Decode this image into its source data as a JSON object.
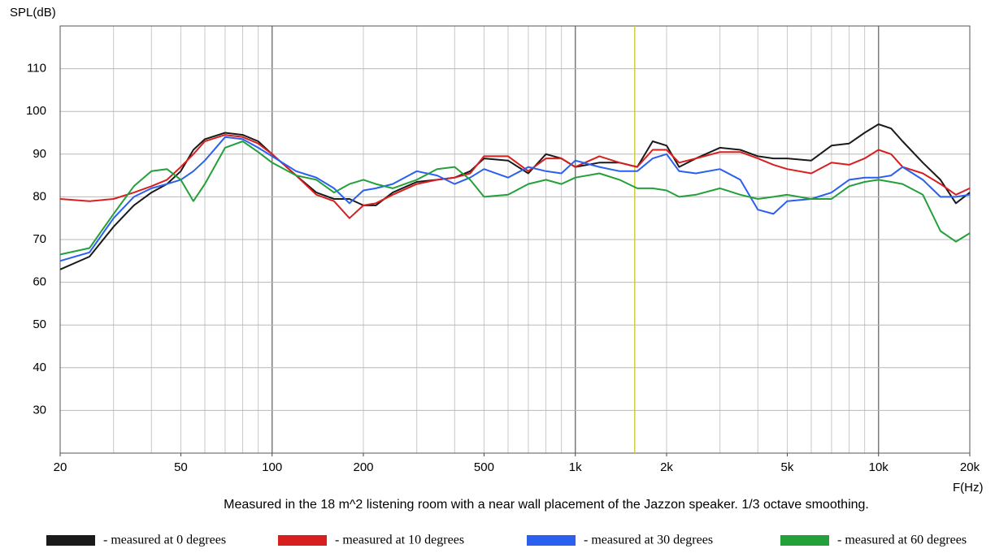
{
  "chart_data": {
    "type": "line",
    "y_label": "SPL(dB)",
    "x_label": "F(Hz)",
    "caption": "Measured in the 18 m^2 listening room with a near wall placement of the Jazzon speaker. 1/3 octave smoothing.",
    "xscale": "log",
    "grid": true,
    "xlim": [
      20,
      20000
    ],
    "ylim": [
      20,
      120
    ],
    "xticks": [
      20,
      50,
      100,
      200,
      500,
      {
        "value": 1000,
        "label": "1k"
      },
      {
        "value": 2000,
        "label": "2k"
      },
      {
        "value": 5000,
        "label": "5k"
      },
      {
        "value": 10000,
        "label": "10k"
      },
      {
        "value": 20000,
        "label": "20k"
      }
    ],
    "yticks": [
      30,
      40,
      50,
      60,
      70,
      80,
      90,
      100,
      110
    ],
    "cursor_x": 1570,
    "cursor_color": "#d4cc3a",
    "x": [
      20,
      25,
      30,
      35,
      40,
      45,
      50,
      55,
      60,
      70,
      80,
      90,
      100,
      120,
      140,
      160,
      180,
      200,
      220,
      250,
      300,
      350,
      400,
      450,
      500,
      600,
      700,
      800,
      900,
      1000,
      1200,
      1400,
      1600,
      1800,
      2000,
      2200,
      2500,
      3000,
      3500,
      4000,
      4500,
      5000,
      6000,
      7000,
      8000,
      9000,
      10000,
      11000,
      12000,
      14000,
      16000,
      18000,
      20000
    ],
    "series": [
      {
        "name": "- measured at 0 degrees",
        "color": "#1a1a1a",
        "values": [
          63,
          66,
          73,
          78,
          81,
          83,
          86,
          91,
          93.5,
          95,
          94.5,
          93,
          90,
          85,
          81,
          79.5,
          79.5,
          78,
          78,
          81,
          83.5,
          84,
          84.5,
          86,
          89,
          88.5,
          85.5,
          90,
          89,
          87,
          88,
          88,
          87,
          93,
          92,
          87,
          89,
          91.5,
          91,
          89.5,
          89,
          89,
          88.5,
          92,
          92.5,
          95,
          97,
          96,
          93,
          88,
          84,
          78.5,
          81
        ]
      },
      {
        "name": "- measured at 10 degrees",
        "color": "#d81f1f",
        "values": [
          79.5,
          79,
          79.5,
          81,
          82.5,
          84,
          87,
          90,
          93,
          94.5,
          94,
          92.5,
          90,
          85,
          80.5,
          79,
          75,
          78,
          78.5,
          80.5,
          83,
          84,
          84.5,
          85.5,
          89.5,
          89.5,
          86,
          89,
          89,
          87,
          89.5,
          88,
          87,
          91,
          91,
          88,
          89,
          90.5,
          90.5,
          89,
          87.5,
          86.5,
          85.5,
          88,
          87.5,
          89,
          91,
          90,
          87,
          85.5,
          83,
          80.5,
          82
        ]
      },
      {
        "name": "- measured at 30 degrees",
        "color": "#2a5ff0",
        "values": [
          65,
          67,
          75,
          80,
          82,
          83,
          84,
          86,
          88.5,
          94,
          93.5,
          91.5,
          89.5,
          86,
          84.5,
          82,
          78.5,
          81.5,
          82,
          83,
          86,
          85,
          83,
          84.5,
          86.5,
          84.5,
          87,
          86,
          85.5,
          88.5,
          87,
          86,
          86,
          89,
          90,
          86,
          85.5,
          86.5,
          84,
          77,
          76,
          79,
          79.5,
          81,
          84,
          84.5,
          84.5,
          85,
          87,
          84,
          80,
          80,
          80.5
        ]
      },
      {
        "name": "- measured at 60 degrees",
        "color": "#23a03a",
        "values": [
          66.5,
          68,
          76,
          82.5,
          86,
          86.5,
          84,
          79,
          83,
          91.5,
          93,
          90.5,
          88,
          85,
          84,
          81,
          83,
          84,
          83,
          82,
          84,
          86.5,
          87,
          84,
          80,
          80.5,
          83,
          84,
          83,
          84.5,
          85.5,
          84,
          82,
          82,
          81.5,
          80,
          80.5,
          82,
          80.5,
          79.5,
          80,
          80.5,
          79.5,
          79.5,
          82.5,
          83.5,
          84,
          83.5,
          83,
          80.5,
          72,
          69.5,
          71.5
        ]
      }
    ]
  }
}
